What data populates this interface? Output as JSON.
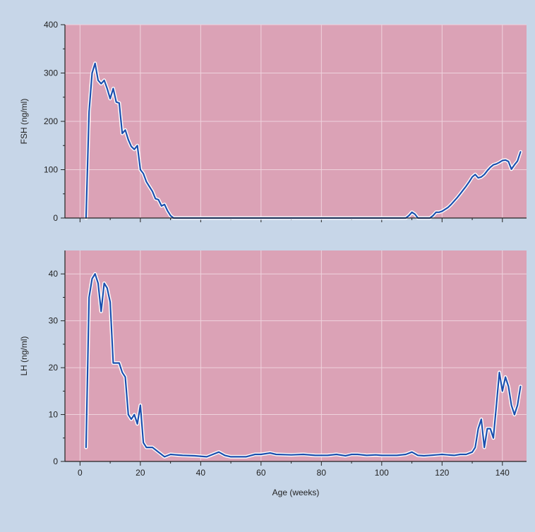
{
  "colors": {
    "page_background": "#c7d6e8",
    "plot_background": "#dba2b6",
    "grid": "#efd3dd",
    "axis": "#222222",
    "line": "#1b4fae",
    "line_halo": "#ffffff"
  },
  "chart_data": [
    {
      "type": "line",
      "ylabel": "FSH (ng/ml)",
      "xlabel": "",
      "xlim": [
        -5,
        148
      ],
      "ylim": [
        0,
        400
      ],
      "yticks": [
        0,
        100,
        200,
        300,
        400
      ],
      "xticks": [
        0,
        20,
        40,
        60,
        80,
        100,
        120,
        140
      ],
      "show_x_tick_labels": false,
      "grid": true,
      "series": [
        {
          "x": [
            2,
            3,
            4,
            5,
            6,
            7,
            8,
            9,
            10,
            11,
            12,
            13,
            14,
            15,
            16,
            17,
            18,
            19,
            20,
            21,
            22,
            23,
            24,
            25,
            26,
            27,
            28,
            29,
            30,
            31,
            35,
            50,
            70,
            90,
            108,
            109,
            110,
            111,
            112,
            116,
            117,
            118,
            119,
            120,
            121,
            122,
            123,
            124,
            125,
            126,
            127,
            128,
            129,
            130,
            131,
            132,
            133,
            134,
            135,
            136,
            137,
            138,
            139,
            140,
            141,
            142,
            143,
            144,
            145,
            146
          ],
          "y": [
            0,
            220,
            300,
            320,
            285,
            278,
            285,
            268,
            247,
            268,
            240,
            238,
            175,
            182,
            162,
            148,
            142,
            150,
            100,
            92,
            75,
            65,
            55,
            40,
            38,
            25,
            28,
            15,
            5,
            0,
            0,
            0,
            0,
            0,
            0,
            5,
            12,
            8,
            0,
            0,
            5,
            12,
            12,
            14,
            18,
            22,
            28,
            35,
            42,
            50,
            58,
            66,
            75,
            85,
            90,
            83,
            85,
            90,
            98,
            105,
            110,
            112,
            115,
            119,
            120,
            117,
            101,
            110,
            118,
            137
          ]
        }
      ]
    },
    {
      "type": "line",
      "ylabel": "LH (ng/ml)",
      "xlabel": "Age (weeks)",
      "xlim": [
        -5,
        148
      ],
      "ylim": [
        0,
        45
      ],
      "yticks": [
        0,
        10,
        20,
        30,
        40
      ],
      "xticks": [
        0,
        20,
        40,
        60,
        80,
        100,
        120,
        140
      ],
      "show_x_tick_labels": true,
      "grid": true,
      "series": [
        {
          "x": [
            2,
            3,
            4,
            5,
            6,
            7,
            8,
            9,
            10,
            11,
            12,
            13,
            14,
            15,
            16,
            17,
            18,
            19,
            20,
            21,
            22,
            24,
            26,
            28,
            30,
            34,
            38,
            42,
            44,
            46,
            48,
            50,
            55,
            58,
            60,
            63,
            65,
            70,
            74,
            78,
            82,
            85,
            88,
            90,
            92,
            95,
            98,
            100,
            105,
            108,
            110,
            112,
            114,
            116,
            118,
            120,
            124,
            126,
            128,
            130,
            131,
            132,
            133,
            134,
            135,
            136,
            137,
            138,
            139,
            140,
            141,
            142,
            143,
            144,
            145,
            146
          ],
          "y": [
            3,
            35,
            39,
            40,
            38,
            32,
            38,
            37,
            34,
            21,
            21,
            21,
            19,
            18,
            10,
            9,
            10,
            8,
            12,
            4,
            3,
            3,
            2,
            1,
            1.5,
            1.3,
            1.2,
            1,
            1.5,
            2,
            1.3,
            1,
            1,
            1.5,
            1.5,
            1.8,
            1.5,
            1.4,
            1.5,
            1.3,
            1.3,
            1.5,
            1.2,
            1.5,
            1.5,
            1.3,
            1.4,
            1.3,
            1.3,
            1.5,
            2,
            1.3,
            1.2,
            1.3,
            1.4,
            1.5,
            1.3,
            1.5,
            1.5,
            2,
            3,
            7,
            9,
            3,
            7,
            7,
            5,
            12,
            19,
            15,
            18,
            16,
            12,
            10,
            12,
            16
          ]
        }
      ]
    }
  ]
}
